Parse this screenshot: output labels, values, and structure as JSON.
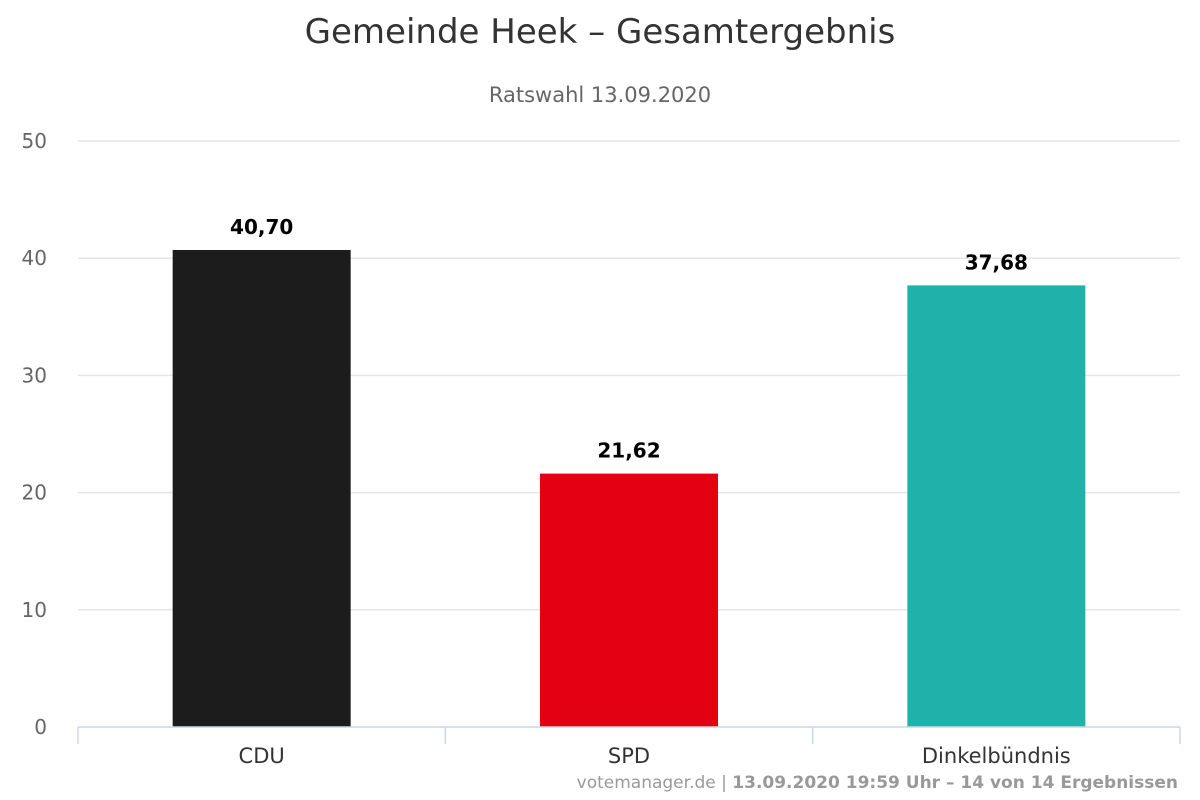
{
  "chart_data": {
    "type": "bar",
    "title": "Gemeinde Heek – Gesamtergebnis",
    "subtitle": "Ratswahl 13.09.2020",
    "categories": [
      "CDU",
      "SPD",
      "Dinkelbündnis"
    ],
    "values": [
      40.7,
      21.62,
      37.68
    ],
    "value_labels": [
      "40,70",
      "21,62",
      "37,68"
    ],
    "colors": [
      "#1c1c1c",
      "#e30013",
      "#21b1ab"
    ],
    "ylim": [
      0,
      50
    ],
    "yticks": [
      0,
      10,
      20,
      30,
      40,
      50
    ],
    "grid": true,
    "legend": "none"
  },
  "footer": {
    "source": "votemanager.de",
    "separator": " | ",
    "status": "13.09.2020 19:59 Uhr – 14 von 14 Ergebnissen"
  }
}
